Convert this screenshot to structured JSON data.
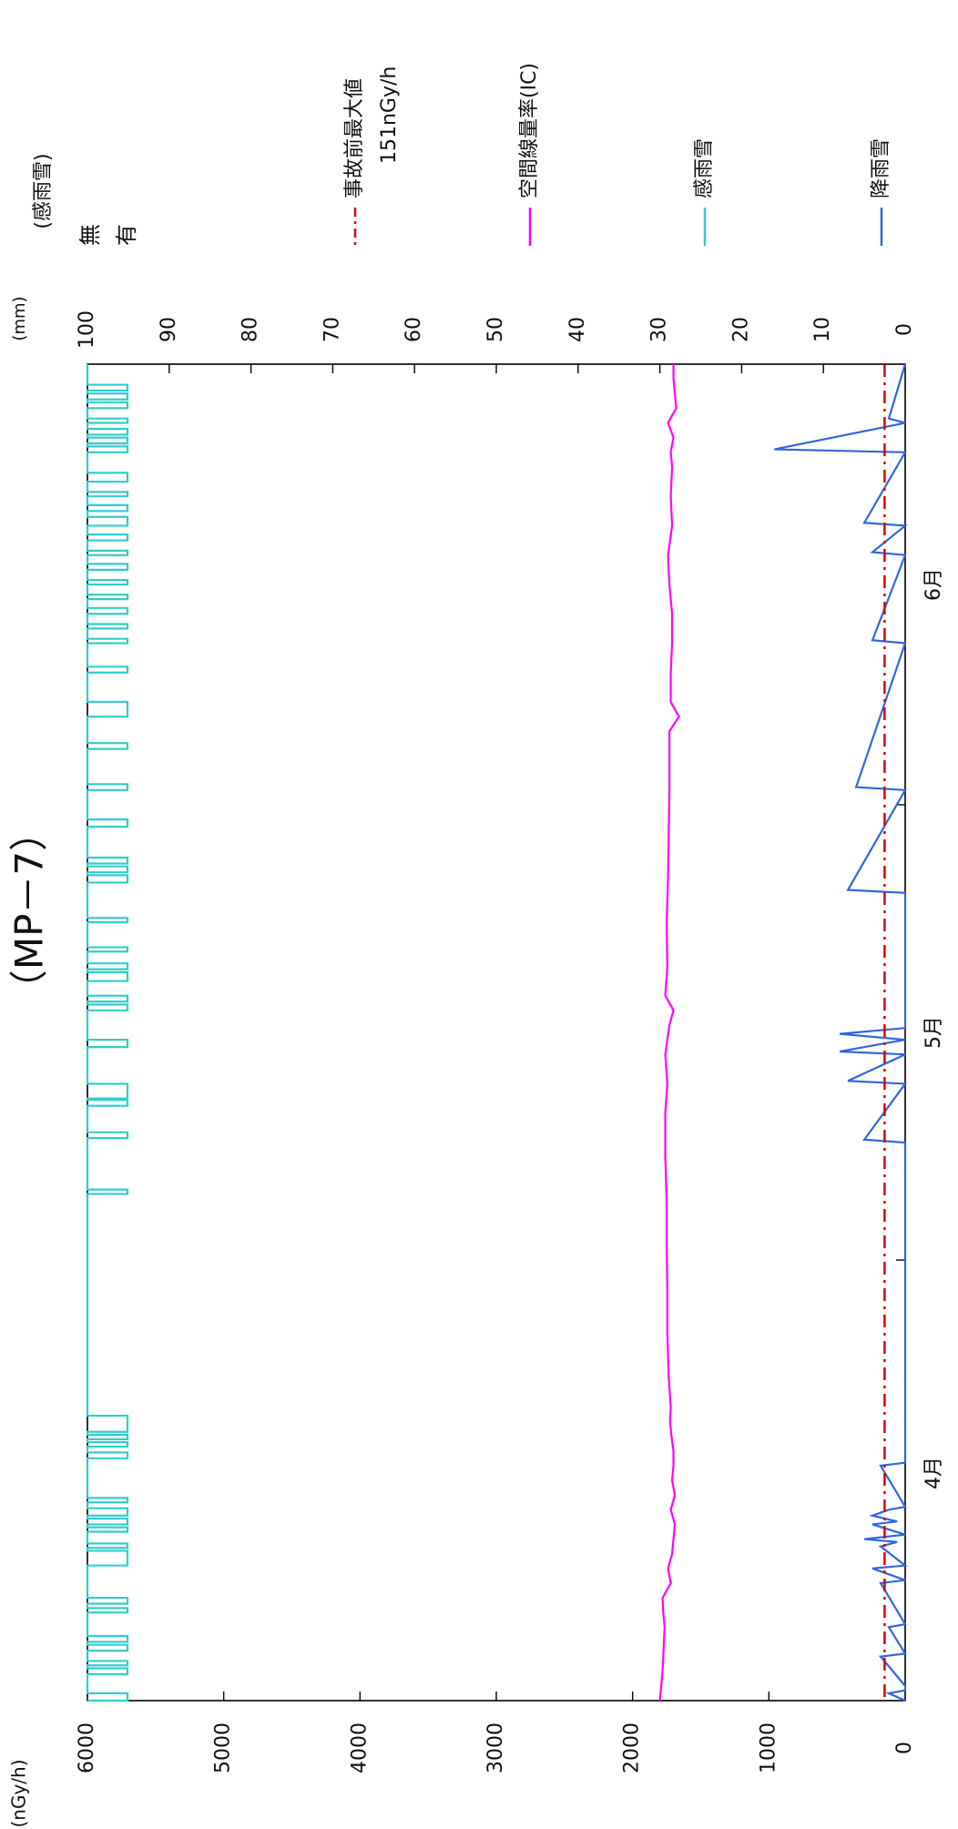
{
  "title": "（MP－7）",
  "colors": {
    "dose": "#ff00ff",
    "precip": "#3366dd",
    "sense": "#33cccc",
    "pre_accident": "#dd0000"
  },
  "legend": {
    "pre_accident_line1": "事故前最大値",
    "pre_accident_line2": "151nGy/h",
    "dose": "空間線量率(IC)",
    "sense": "感雨雪",
    "precip": "降雨雪"
  },
  "left_axis": {
    "unit": "(nGy/h)",
    "ticks": [
      "0",
      "1000",
      "2000",
      "3000",
      "4000",
      "5000",
      "6000"
    ],
    "min": 0,
    "max": 6000
  },
  "right_axis": {
    "unit": "(mm)",
    "ticks": [
      "0",
      "10",
      "20",
      "30",
      "40",
      "50",
      "60",
      "70",
      "80",
      "90",
      "100"
    ],
    "min": 0,
    "max": 100,
    "sense_header": "(感雨雪)",
    "sense_none": "無",
    "sense_yes": "有"
  },
  "date_axis": {
    "labels": [
      {
        "text": "4月",
        "day": 15.5
      },
      {
        "text": "5月",
        "day": 45.5
      },
      {
        "text": "6月",
        "day": 76
      }
    ],
    "ticks": [
      30,
      61
    ],
    "start": "04-01",
    "end": "06-30"
  },
  "chart_data": {
    "type": "line",
    "title": "（MP－7）",
    "x_unit": "day of quarter (Apr 1 = 0)",
    "xlim": [
      0,
      91
    ],
    "ylim_left": [
      0,
      6000
    ],
    "ylim_right": [
      0,
      100
    ],
    "pre_accident_max": 151,
    "series": [
      {
        "name": "空間線量率(IC)",
        "axis": "left",
        "x": [
          0,
          1,
          2,
          3,
          4,
          5,
          6,
          7,
          8,
          9,
          10,
          11,
          12,
          13,
          14,
          15,
          16,
          17,
          18,
          19,
          20,
          22,
          25,
          28,
          31,
          34,
          37,
          40,
          42,
          44,
          46,
          47,
          48,
          50,
          53,
          56,
          59,
          62,
          64,
          66,
          67,
          68,
          70,
          72,
          73,
          74,
          76,
          78,
          80,
          82,
          84,
          85,
          86,
          87,
          88,
          89,
          90,
          91
        ],
        "values": [
          1800,
          1790,
          1780,
          1775,
          1770,
          1765,
          1775,
          1780,
          1720,
          1740,
          1710,
          1700,
          1690,
          1720,
          1690,
          1710,
          1700,
          1700,
          1715,
          1725,
          1720,
          1735,
          1745,
          1745,
          1750,
          1750,
          1760,
          1760,
          1745,
          1760,
          1730,
          1700,
          1760,
          1745,
          1750,
          1740,
          1735,
          1730,
          1730,
          1730,
          1660,
          1720,
          1720,
          1710,
          1710,
          1710,
          1730,
          1740,
          1710,
          1720,
          1710,
          1720,
          1700,
          1740,
          1680,
          1690,
          1700,
          1700
        ]
      },
      {
        "name": "降雨雪",
        "axis": "right",
        "x": [
          0,
          0.5,
          0.7,
          1,
          3,
          3.2,
          5,
          5.2,
          8,
          8.2,
          9,
          9.2,
          10.5,
          10.8,
          11,
          11.3,
          12,
          12.2,
          12.6,
          13,
          13.2,
          16,
          16.2,
          38,
          38.2,
          42,
          42.2,
          44,
          44.2,
          45,
          45.4,
          45.8,
          46,
          55,
          55.2,
          62,
          62.2,
          72,
          72.2,
          78,
          78.2,
          80,
          80.2,
          85,
          85.2,
          87,
          87.3,
          91
        ],
        "values": [
          0,
          2,
          0,
          0,
          3,
          0,
          2,
          0,
          3,
          0,
          4,
          0,
          3,
          1,
          5,
          0,
          4,
          1,
          4,
          2,
          0,
          3,
          0,
          0,
          5,
          0,
          7,
          0,
          8,
          0,
          8,
          0,
          0,
          0,
          7,
          0,
          6,
          0,
          4,
          0,
          4,
          0,
          5,
          0,
          16,
          0,
          2,
          0
        ]
      },
      {
        "name": "感雨雪",
        "axis": "right",
        "type": "binary",
        "intervals": [
          [
            0,
            0.5
          ],
          [
            1.8,
            2.2
          ],
          [
            2.4,
            2.7
          ],
          [
            3.4,
            3.8
          ],
          [
            4.0,
            4.4
          ],
          [
            6,
            6.3
          ],
          [
            6.6,
            7.0
          ],
          [
            9.2,
            10.2
          ],
          [
            10.4,
            10.7
          ],
          [
            11.5,
            11.8
          ],
          [
            12.0,
            12.4
          ],
          [
            12.6,
            13.1
          ],
          [
            13.5,
            13.8
          ],
          [
            16.5,
            16.9
          ],
          [
            17.3,
            17.6
          ],
          [
            17.8,
            18.1
          ],
          [
            18.3,
            19.4
          ],
          [
            34.5,
            34.8
          ],
          [
            38.3,
            38.7
          ],
          [
            40.5,
            40.9
          ],
          [
            41.0,
            42.0
          ],
          [
            44.5,
            45.0
          ],
          [
            47.0,
            47.4
          ],
          [
            47.6,
            48.0
          ],
          [
            49.0,
            49.6
          ],
          [
            49.8,
            50.2
          ],
          [
            51.0,
            51.3
          ],
          [
            53.0,
            53.3
          ],
          [
            55.7,
            56.2
          ],
          [
            56.4,
            56.8
          ],
          [
            57.0,
            57.4
          ],
          [
            59.5,
            60.0
          ],
          [
            62.0,
            62.4
          ],
          [
            64.8,
            65.2
          ],
          [
            67.0,
            68.0
          ],
          [
            70.0,
            70.4
          ],
          [
            72.0,
            72.3
          ],
          [
            73.0,
            73.3
          ],
          [
            74.0,
            74.4
          ],
          [
            75.0,
            75.3
          ],
          [
            76.0,
            76.3
          ],
          [
            77.0,
            77.4
          ],
          [
            78.0,
            78.3
          ],
          [
            79.0,
            79.4
          ],
          [
            80.0,
            80.6
          ],
          [
            81.0,
            81.4
          ],
          [
            82.0,
            82.3
          ],
          [
            83.0,
            83.6
          ],
          [
            85.0,
            85.4
          ],
          [
            85.6,
            86.0
          ],
          [
            86.2,
            86.6
          ],
          [
            87.0,
            87.3
          ],
          [
            88.0,
            88.4
          ],
          [
            88.6,
            89.0
          ],
          [
            89.2,
            89.6
          ]
        ]
      },
      {
        "name": "事故前最大値",
        "axis": "left",
        "type": "reference",
        "value": 151
      }
    ]
  }
}
